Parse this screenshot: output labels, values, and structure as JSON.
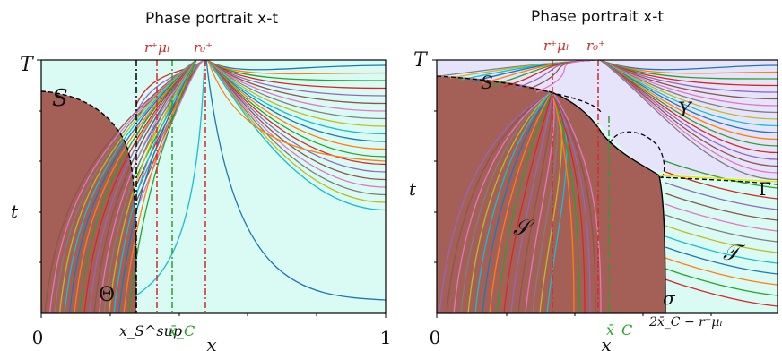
{
  "left_panel": {
    "title": "Phase portrait x-t",
    "t_axis_label": "t",
    "T_label": "T",
    "x_axis_label": "x",
    "x_tick_0": "0",
    "x_tick_1": "1",
    "marker_r_mu": "r⁺μₗ",
    "marker_r0": "r₀⁺",
    "marker_xS": "x_S^sup",
    "marker_xC": "x̄_C",
    "region_S": "S",
    "region_Theta": "Θ"
  },
  "right_panel": {
    "title": "Phase portrait x-t",
    "t_axis_label": "t",
    "T_label": "T",
    "x_axis_label": "x",
    "x_tick_0": "0",
    "marker_r_mu": "r⁺μₗ",
    "marker_r0": "r₀⁺",
    "marker_xC": "x̄_C",
    "marker_2xC": "2x̄_C − r⁺μₗ",
    "region_S_top": "S",
    "region_S_inner": "𝒮",
    "region_Upsilon": "Υ",
    "region_Gamma": "Γ",
    "region_Tau": "𝒯",
    "region_sigma": "σ"
  },
  "colors": {
    "shaded_brown": "#a0524a",
    "light_cyan": "#d9fbf3",
    "light_lavender": "#e6e4fb",
    "red_marker": "#d62728",
    "green_marker": "#2ca02c"
  }
}
